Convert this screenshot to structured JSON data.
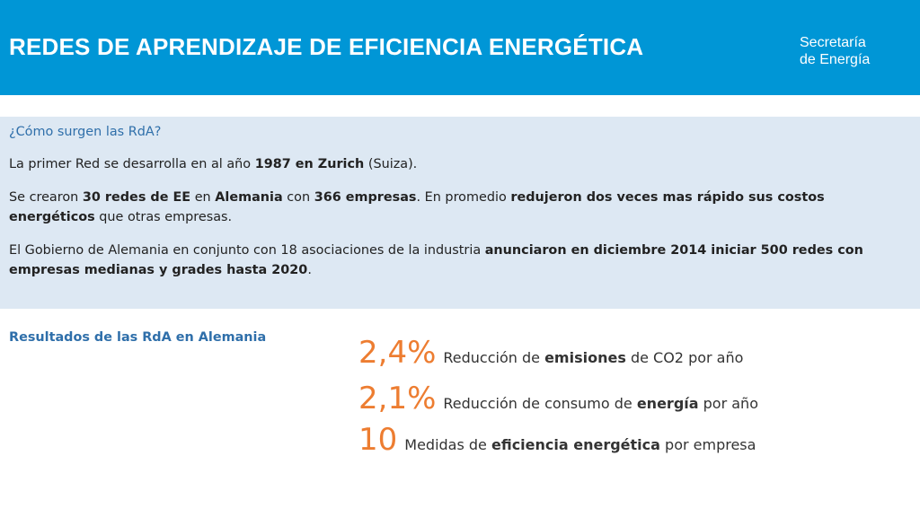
{
  "header": {
    "title": "REDES DE APRENDIZAJE DE EFICIENCIA ENERGÉTICA",
    "logo_line1": "Secretaría",
    "logo_line2": "de Energía"
  },
  "info": {
    "question": "¿Cómo surgen las RdA?",
    "p1": {
      "t1": "La primer Red se desarrolla en al año ",
      "b1": "1987 en Zurich",
      "t2": " (Suiza)."
    },
    "p2": {
      "t1": "Se crearon ",
      "b1": "30 redes de EE",
      "t2": " en ",
      "b2": "Alemania",
      "t3": " con ",
      "b3": "366 empresas",
      "t4": ". En promedio ",
      "b4": "redujeron dos veces mas rápido sus costos energéticos",
      "t5": " que otras empresas."
    },
    "p3": {
      "t1": "El Gobierno de Alemania en conjunto con 18 asociaciones de la industria ",
      "b1": "anunciaron en diciembre 2014 iniciar 500 redes con empresas medianas y grades hasta 2020",
      "t2": "."
    }
  },
  "results": {
    "label": "Resultados de las RdA en Alemania",
    "stats": [
      {
        "value": "2,4%",
        "pre": "Reducción de ",
        "bold": "emisiones",
        "post": " de CO2 por año"
      },
      {
        "value": "2,1%",
        "pre": "Reducción de consumo de ",
        "bold": "energía",
        "post": " por año"
      },
      {
        "value": "10",
        "pre": "Medidas de ",
        "bold": "eficiencia energética",
        "post": " por empresa"
      }
    ]
  },
  "colors": {
    "header_bg": "#0096d6",
    "info_bg": "#dde8f3",
    "accent_blue": "#2f6faa",
    "accent_orange": "#ed7d31"
  }
}
